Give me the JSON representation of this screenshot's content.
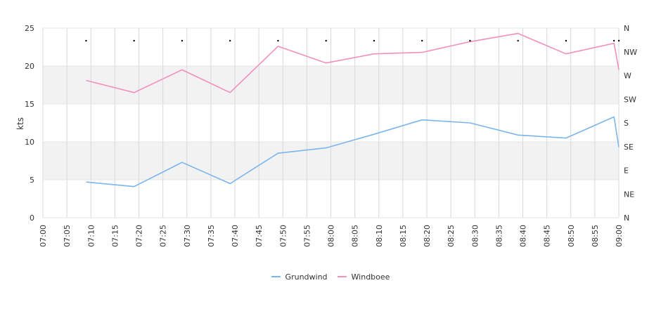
{
  "chart_data": {
    "type": "line",
    "ylabel": "kts",
    "ylim": [
      0,
      25
    ],
    "y_ticks": [
      "0",
      "5",
      "10",
      "15",
      "20",
      "25"
    ],
    "x_ticks": [
      "07:00",
      "07:05",
      "07:10",
      "07:15",
      "07:20",
      "07:25",
      "07:30",
      "07:35",
      "07:40",
      "07:45",
      "07:50",
      "07:55",
      "08:00",
      "08:05",
      "08:10",
      "08:15",
      "08:20",
      "08:25",
      "08:30",
      "08:35",
      "08:40",
      "08:45",
      "08:50",
      "08:55",
      "09:00"
    ],
    "direction_axis_labels": [
      "N",
      "NW",
      "W",
      "SW",
      "S",
      "SE",
      "E",
      "NE",
      "N"
    ],
    "x": [
      "07:09",
      "07:19",
      "07:29",
      "07:39",
      "07:49",
      "07:59",
      "08:09",
      "08:19",
      "08:29",
      "08:39",
      "08:49",
      "08:59",
      "09:00"
    ],
    "series": [
      {
        "name": "Grundwind",
        "color": "#7cb5ec",
        "values": [
          4.7,
          4.1,
          7.3,
          4.5,
          8.5,
          9.2,
          11.0,
          12.9,
          12.5,
          10.9,
          10.5,
          13.3,
          9.3
        ]
      },
      {
        "name": "Windboee",
        "color": "#f28fbc",
        "values": [
          18.1,
          16.5,
          19.5,
          16.5,
          22.6,
          20.4,
          21.6,
          21.8,
          23.2,
          24.3,
          21.6,
          23.0,
          19.5
        ]
      }
    ],
    "wind_direction_points": [
      "07:09",
      "07:19",
      "07:29",
      "07:39",
      "07:49",
      "07:59",
      "08:09",
      "08:19",
      "08:29",
      "08:39",
      "08:49",
      "08:59",
      "09:00"
    ],
    "grid": true,
    "legend_position": "bottom"
  }
}
